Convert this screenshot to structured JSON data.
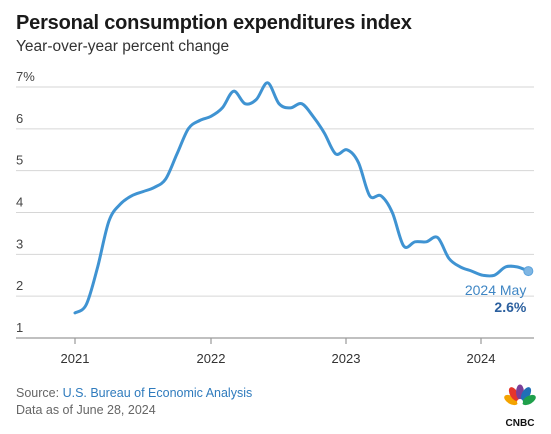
{
  "header": {
    "title": "Personal consumption expenditures index",
    "subtitle": "Year-over-year percent change"
  },
  "footer": {
    "source_prefix": "Source: ",
    "source_link": "U.S. Bureau of Economic Analysis",
    "as_of": "Data as of June 28, 2024"
  },
  "brand": {
    "name": "CNBC",
    "logo_icon": "cnbc-peacock-icon"
  },
  "colors": {
    "line": "#3f93d2",
    "grid": "#d6d6d6",
    "axis": "#9a9a9a",
    "callout_value": "#2b5f9e"
  },
  "chart_data": {
    "type": "line",
    "title": "Personal consumption expenditures index",
    "subtitle": "Year-over-year percent change",
    "xlabel": "",
    "ylabel": "",
    "ylim": [
      1,
      7
    ],
    "yticks": [
      "1",
      "2",
      "3",
      "4",
      "5",
      "6",
      "7%"
    ],
    "xticks": [
      "2021",
      "2022",
      "2023",
      "2024"
    ],
    "grid": true,
    "series": [
      {
        "values": [
          {
            "x": "2021-01",
            "y": 1.6
          },
          {
            "x": "2021-02",
            "y": 1.8
          },
          {
            "x": "2021-03",
            "y": 2.7
          },
          {
            "x": "2021-04",
            "y": 3.8
          },
          {
            "x": "2021-05",
            "y": 4.2
          },
          {
            "x": "2021-06",
            "y": 4.4
          },
          {
            "x": "2021-07",
            "y": 4.5
          },
          {
            "x": "2021-08",
            "y": 4.6
          },
          {
            "x": "2021-09",
            "y": 4.8
          },
          {
            "x": "2021-10",
            "y": 5.4
          },
          {
            "x": "2021-11",
            "y": 6.0
          },
          {
            "x": "2021-12",
            "y": 6.2
          },
          {
            "x": "2022-01",
            "y": 6.3
          },
          {
            "x": "2022-02",
            "y": 6.5
          },
          {
            "x": "2022-03",
            "y": 6.9
          },
          {
            "x": "2022-04",
            "y": 6.6
          },
          {
            "x": "2022-05",
            "y": 6.7
          },
          {
            "x": "2022-06",
            "y": 7.1
          },
          {
            "x": "2022-07",
            "y": 6.6
          },
          {
            "x": "2022-08",
            "y": 6.5
          },
          {
            "x": "2022-09",
            "y": 6.6
          },
          {
            "x": "2022-10",
            "y": 6.3
          },
          {
            "x": "2022-11",
            "y": 5.9
          },
          {
            "x": "2022-12",
            "y": 5.4
          },
          {
            "x": "2023-01",
            "y": 5.5
          },
          {
            "x": "2023-02",
            "y": 5.2
          },
          {
            "x": "2023-03",
            "y": 4.4
          },
          {
            "x": "2023-04",
            "y": 4.4
          },
          {
            "x": "2023-05",
            "y": 4.0
          },
          {
            "x": "2023-06",
            "y": 3.2
          },
          {
            "x": "2023-07",
            "y": 3.3
          },
          {
            "x": "2023-08",
            "y": 3.3
          },
          {
            "x": "2023-09",
            "y": 3.4
          },
          {
            "x": "2023-10",
            "y": 2.9
          },
          {
            "x": "2023-11",
            "y": 2.7
          },
          {
            "x": "2023-12",
            "y": 2.6
          },
          {
            "x": "2024-01",
            "y": 2.5
          },
          {
            "x": "2024-02",
            "y": 2.5
          },
          {
            "x": "2024-03",
            "y": 2.7
          },
          {
            "x": "2024-04",
            "y": 2.7
          },
          {
            "x": "2024-05",
            "y": 2.6
          }
        ]
      }
    ],
    "annotation": {
      "label": "2024 May",
      "value": "2.6%",
      "x": "2024-05",
      "y": 2.6
    }
  }
}
